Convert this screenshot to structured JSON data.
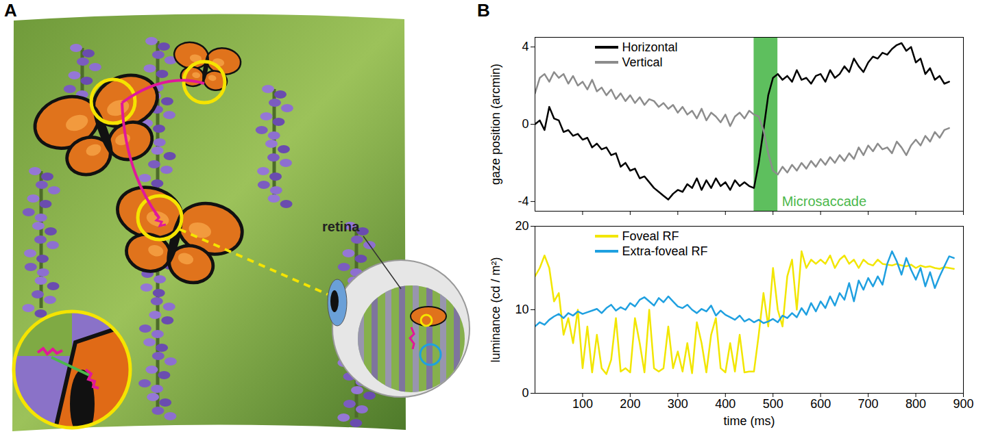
{
  "panel_a": {
    "letter": "A",
    "label": "retina"
  },
  "panel_b": {
    "letter": "B"
  },
  "chart_data": [
    {
      "type": "line",
      "ylabel": "gaze position (arcmin)",
      "x": [
        0,
        10,
        20,
        30,
        40,
        50,
        60,
        70,
        80,
        90,
        100,
        110,
        120,
        130,
        140,
        150,
        160,
        170,
        180,
        190,
        200,
        210,
        220,
        230,
        240,
        250,
        260,
        270,
        280,
        290,
        300,
        310,
        320,
        330,
        340,
        350,
        360,
        370,
        380,
        390,
        400,
        410,
        420,
        430,
        440,
        450,
        460,
        470,
        480,
        490,
        500,
        510,
        520,
        530,
        540,
        550,
        560,
        570,
        580,
        590,
        600,
        610,
        620,
        630,
        640,
        650,
        660,
        670,
        680,
        690,
        700,
        710,
        720,
        730,
        740,
        750,
        760,
        770,
        780,
        790,
        800,
        810,
        820,
        830,
        840,
        850,
        860,
        870
      ],
      "series": [
        {
          "name": "Horizontal",
          "color": "#000000",
          "values": [
            0,
            0.2,
            -0.3,
            0.9,
            0.3,
            0.2,
            -0.4,
            -0.3,
            -0.6,
            -0.5,
            -0.8,
            -0.7,
            -1.2,
            -1.0,
            -1.3,
            -1.2,
            -1.6,
            -1.5,
            -2.2,
            -2.0,
            -2.4,
            -2.3,
            -2.8,
            -2.7,
            -3.0,
            -3.3,
            -3.5,
            -3.7,
            -3.9,
            -3.6,
            -3.4,
            -3.5,
            -3.1,
            -3.3,
            -2.8,
            -3.4,
            -2.9,
            -3.3,
            -2.8,
            -3.2,
            -3.0,
            -3.4,
            -2.9,
            -3.2,
            -3.0,
            -3.2,
            -3.3,
            -2.0,
            -0.3,
            1.5,
            2.4,
            2.6,
            2.3,
            2.5,
            2.2,
            2.8,
            2.3,
            2.4,
            2.1,
            2.5,
            2.6,
            2.2,
            2.8,
            2.4,
            2.6,
            3.0,
            2.7,
            3.4,
            3.0,
            2.7,
            3.2,
            3.5,
            3.4,
            3.7,
            3.6,
            3.9,
            4.1,
            4.2,
            3.8,
            4.0,
            3.2,
            3.4,
            2.6,
            2.9,
            2.3,
            2.5,
            2.1,
            2.2
          ]
        },
        {
          "name": "Vertical",
          "color": "#8c8c8c",
          "values": [
            1.6,
            2.4,
            2.6,
            2.2,
            2.7,
            2.4,
            2.6,
            2.1,
            2.5,
            2.0,
            2.2,
            1.8,
            2.3,
            1.7,
            1.9,
            1.5,
            1.8,
            1.3,
            1.6,
            1.2,
            1.5,
            1.1,
            1.4,
            1.0,
            1.3,
            1.2,
            0.9,
            1.1,
            0.8,
            1.0,
            0.6,
            0.9,
            0.5,
            0.7,
            0.3,
            0.8,
            0.2,
            0.6,
            0.4,
            0.1,
            0.5,
            -0.1,
            0.4,
            0.6,
            0.3,
            0.7,
            0.5,
            0.4,
            -0.3,
            -1.5,
            -2.4,
            -2.6,
            -2.2,
            -2.5,
            -2.1,
            -2.4,
            -2.0,
            -2.3,
            -1.9,
            -2.2,
            -1.8,
            -2.1,
            -1.7,
            -2.0,
            -1.6,
            -1.9,
            -1.5,
            -1.8,
            -1.2,
            -1.6,
            -1.1,
            -1.4,
            -1.0,
            -1.3,
            -1.2,
            -1.5,
            -0.9,
            -1.2,
            -1.6,
            -1.1,
            -0.8,
            -1.1,
            -0.6,
            -0.9,
            -0.4,
            -0.7,
            -0.3,
            -0.2
          ]
        }
      ],
      "xlim": [
        0,
        900
      ],
      "xticks": [
        100,
        200,
        300,
        400,
        500,
        600,
        700,
        800,
        900
      ],
      "ylim": [
        -4.5,
        4.5
      ],
      "yticks": [
        -4,
        0,
        4
      ],
      "tick_labels": "y",
      "legend": "top-left",
      "annotations": [
        {
          "text": "Microsaccade",
          "x": [
            460,
            510
          ],
          "color": "#4cb84c"
        }
      ]
    },
    {
      "type": "line",
      "xlabel": "time (ms)",
      "ylabel": "luminance (cd / m²)",
      "x": [
        0,
        10,
        20,
        30,
        40,
        50,
        60,
        70,
        80,
        90,
        100,
        110,
        120,
        130,
        140,
        150,
        160,
        170,
        180,
        190,
        200,
        210,
        220,
        230,
        240,
        250,
        260,
        270,
        280,
        290,
        300,
        310,
        320,
        330,
        340,
        350,
        360,
        370,
        380,
        390,
        400,
        410,
        420,
        430,
        440,
        450,
        460,
        470,
        480,
        490,
        500,
        510,
        520,
        530,
        540,
        550,
        560,
        570,
        580,
        590,
        600,
        610,
        620,
        630,
        640,
        650,
        660,
        670,
        680,
        690,
        700,
        710,
        720,
        730,
        740,
        750,
        760,
        770,
        780,
        790,
        800,
        810,
        820,
        830,
        840,
        850,
        860,
        870,
        880
      ],
      "series": [
        {
          "name": "Foveal RF",
          "color": "#f2e600",
          "values": [
            14,
            15,
            16.5,
            15,
            11,
            12,
            7,
            9,
            6,
            10,
            3,
            8,
            2.5,
            7,
            3,
            2.3,
            4,
            9,
            2.6,
            3,
            2.5,
            9,
            6,
            2.5,
            10,
            3,
            2.6,
            3,
            8,
            3,
            5,
            2.6,
            6,
            2.4,
            8.5,
            6,
            2.5,
            7,
            9,
            3,
            2.5,
            6,
            2.6,
            7,
            2.5,
            2.6,
            2.6,
            7,
            12,
            8,
            15,
            10,
            8,
            14,
            16,
            10,
            17,
            15,
            16,
            15.5,
            16,
            15.5,
            16.5,
            15,
            16,
            16.5,
            15.5,
            16,
            15,
            16,
            15.5,
            15.3,
            16,
            15.5,
            15.4,
            15.3,
            15.5,
            15.3,
            15.2,
            15.4,
            15.0,
            15.3,
            15.1,
            15.2,
            15.0,
            14.9,
            15.1,
            15.0,
            14.9
          ]
        },
        {
          "name": "Extra-foveal RF",
          "color": "#1fa0e0",
          "values": [
            8,
            8.5,
            8.2,
            8.8,
            9.2,
            9.5,
            9.0,
            9.6,
            9.3,
            9.8,
            9.5,
            9.7,
            9.9,
            10.1,
            9.6,
            10.2,
            10.6,
            9.9,
            10.3,
            10.0,
            10.8,
            10.4,
            11.2,
            11.5,
            11.0,
            10.5,
            11.4,
            10.9,
            11.6,
            11.0,
            10.4,
            10.2,
            10.6,
            10.0,
            9.6,
            10.1,
            9.8,
            10.5,
            9.3,
            9.9,
            9.4,
            9.1,
            8.8,
            9.3,
            8.6,
            8.9,
            8.5,
            8.8,
            8.4,
            8.6,
            8.9,
            8.5,
            9.3,
            9.0,
            9.6,
            9.1,
            10.2,
            9.4,
            10.8,
            9.8,
            11.0,
            10.2,
            11.6,
            10.5,
            12.0,
            11.2,
            13.2,
            11.0,
            13.5,
            12.4,
            13.8,
            12.8,
            14.0,
            13.0,
            15.5,
            17.0,
            15.8,
            14.2,
            16.2,
            14.8,
            13.6,
            15.0,
            12.8,
            14.5,
            12.6,
            14.0,
            15.2,
            16.4,
            16.2
          ]
        }
      ],
      "xlim": [
        0,
        900
      ],
      "xticks": [
        100,
        200,
        300,
        400,
        500,
        600,
        700,
        800,
        900
      ],
      "ylim": [
        0,
        20
      ],
      "yticks": [
        0,
        10,
        20
      ],
      "legend": "top-left"
    }
  ]
}
